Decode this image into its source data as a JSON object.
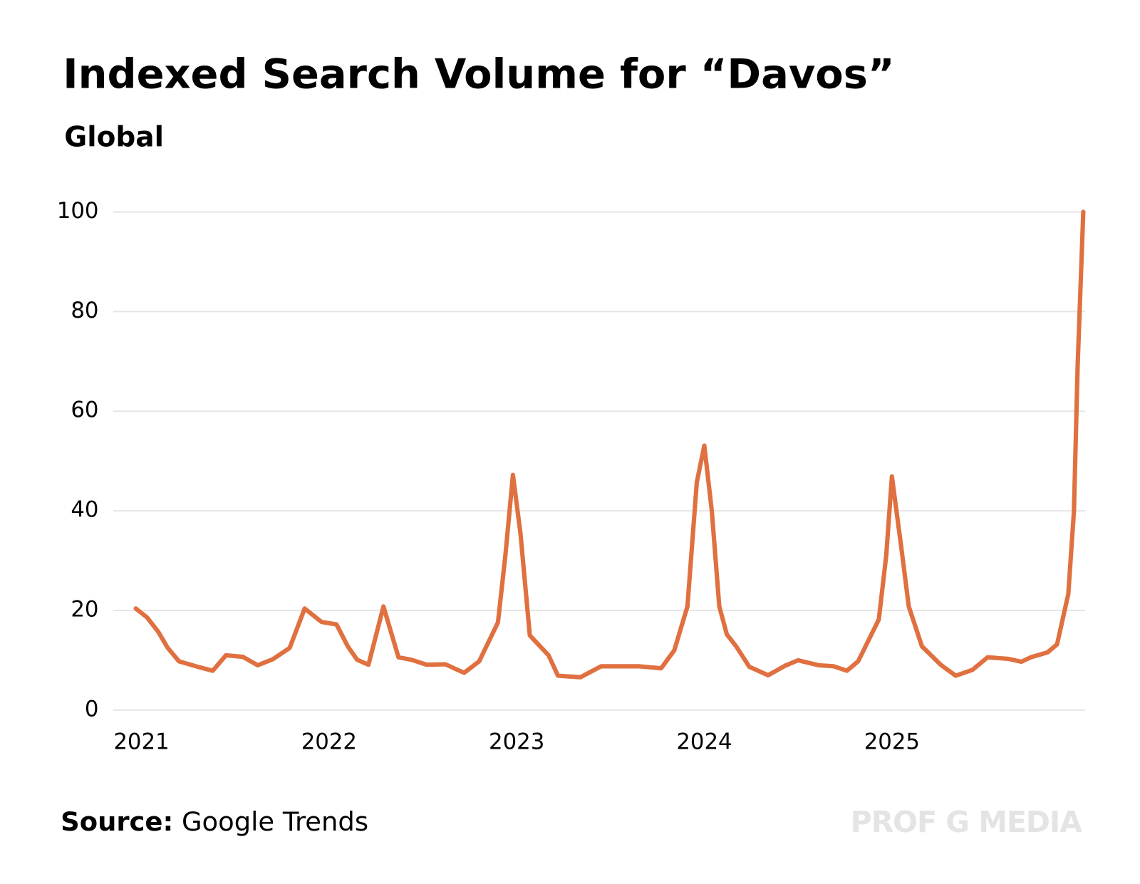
{
  "chart_data": {
    "type": "line",
    "title": "Indexed Search Volume for “Davos”",
    "subtitle": "Global",
    "source_label": "Source:",
    "source": "Google Trends",
    "watermark": "PROF G MEDIA",
    "xlim": [
      2020.85,
      2026.03
    ],
    "xticks": [
      2021,
      2022,
      2023,
      2024,
      2025
    ],
    "ylim": [
      0,
      100
    ],
    "yticks": [
      0,
      20,
      40,
      60,
      80,
      100
    ],
    "grid": true,
    "series": [
      {
        "name": "Davos",
        "color": "#e07040",
        "x": [
          2020.97,
          2021.03,
          2021.09,
          2021.14,
          2021.2,
          2021.3,
          2021.38,
          2021.45,
          2021.54,
          2021.62,
          2021.7,
          2021.79,
          2021.87,
          2021.96,
          2022.04,
          2022.1,
          2022.15,
          2022.21,
          2022.29,
          2022.37,
          2022.44,
          2022.52,
          2022.62,
          2022.72,
          2022.8,
          2022.9,
          2022.94,
          2022.98,
          2023.02,
          2023.07,
          2023.17,
          2023.22,
          2023.34,
          2023.45,
          2023.65,
          2023.77,
          2023.84,
          2023.91,
          2023.96,
          2024.0,
          2024.04,
          2024.08,
          2024.12,
          2024.17,
          2024.24,
          2024.34,
          2024.43,
          2024.5,
          2024.61,
          2024.69,
          2024.76,
          2024.82,
          2024.93,
          2024.97,
          2025.0,
          2025.05,
          2025.09,
          2025.16,
          2025.26,
          2025.34,
          2025.43,
          2025.51,
          2025.62,
          2025.69,
          2025.74,
          2025.83,
          2025.88,
          2025.94,
          2025.97,
          2025.99,
          2026.02
        ],
        "values": [
          20.4,
          18.6,
          15.7,
          12.5,
          9.8,
          8.7,
          7.9,
          11,
          10.7,
          9,
          10.2,
          12.5,
          20.4,
          17.7,
          17.2,
          12.8,
          10.1,
          9.1,
          20.8,
          10.6,
          10.1,
          9.1,
          9.2,
          7.5,
          9.8,
          17.6,
          31.1,
          47.2,
          35.5,
          15,
          11,
          6.9,
          6.6,
          8.8,
          8.8,
          8.4,
          12,
          20.8,
          45.7,
          53.1,
          39.9,
          20.8,
          15.2,
          12.8,
          8.7,
          7,
          8.9,
          10,
          9,
          8.8,
          7.9,
          9.8,
          18.2,
          31.1,
          46.9,
          32.6,
          20.8,
          12.8,
          9.1,
          6.9,
          8.1,
          10.6,
          10.3,
          9.7,
          10.6,
          11.6,
          13.2,
          23.3,
          39.9,
          69.2,
          100
        ]
      }
    ]
  }
}
